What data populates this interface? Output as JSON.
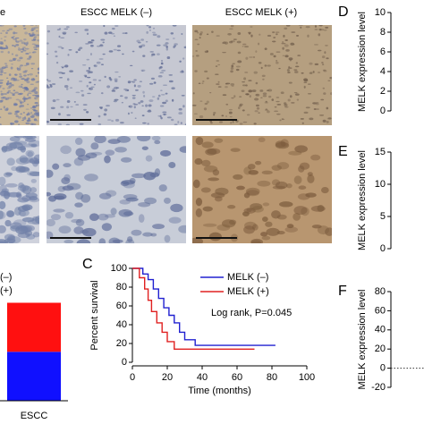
{
  "image_labels": [
    "e",
    "ESCC MELK (–)",
    "ESCC MELK (+)"
  ],
  "chart_data": [
    {
      "type": "stacked_bar",
      "categories": [
        "ESCC"
      ],
      "ylim": [
        0,
        100
      ],
      "series": [
        {
          "name": "(–)",
          "color": "#1010ff",
          "values": [
            37
          ]
        },
        {
          "name": "(+)",
          "color": "#ff1010",
          "values": [
            37
          ]
        }
      ]
    },
    {
      "type": "line",
      "panel": "C",
      "ylabel": "Percent survival",
      "xlabel": "Time (months)",
      "xlim": [
        0,
        100
      ],
      "xticks": [
        0,
        20,
        40,
        60,
        80,
        100
      ],
      "ylim": [
        0,
        100
      ],
      "yticks": [
        0,
        20,
        40,
        60,
        80,
        100
      ],
      "annotation": "Log rank, P=0.045",
      "series": [
        {
          "name": "MELK (–)",
          "color": "#2020d0",
          "x": [
            0,
            6,
            6,
            9,
            9,
            12,
            12,
            15,
            15,
            18,
            18,
            21,
            21,
            24,
            24,
            27,
            27,
            30,
            30,
            36,
            36,
            82
          ],
          "values": [
            100,
            100,
            94,
            94,
            88,
            88,
            78,
            78,
            68,
            68,
            58,
            58,
            50,
            50,
            42,
            42,
            32,
            32,
            24,
            24,
            18,
            18
          ]
        },
        {
          "name": "MELK (+)",
          "color": "#e02020",
          "x": [
            0,
            4,
            4,
            7,
            7,
            9,
            9,
            11,
            11,
            14,
            14,
            17,
            17,
            20,
            20,
            24,
            24,
            70
          ],
          "values": [
            100,
            100,
            90,
            90,
            78,
            78,
            66,
            66,
            54,
            54,
            42,
            42,
            32,
            32,
            22,
            22,
            14,
            14
          ]
        }
      ]
    },
    {
      "type": "axis",
      "panel": "D",
      "ylabel": "MELK expression level",
      "ylim": [
        0,
        10
      ],
      "yticks": [
        0,
        2,
        4,
        6,
        8,
        10
      ]
    },
    {
      "type": "axis",
      "panel": "E",
      "ylabel": "MELK expression level",
      "ylim": [
        0,
        15
      ],
      "yticks": [
        0,
        5,
        10,
        15
      ]
    },
    {
      "type": "axis",
      "panel": "F",
      "ylabel": "MELK expression level",
      "ylim": [
        -20,
        80
      ],
      "yticks": [
        -20,
        0,
        20,
        40,
        60,
        80
      ],
      "hline": 0
    }
  ]
}
